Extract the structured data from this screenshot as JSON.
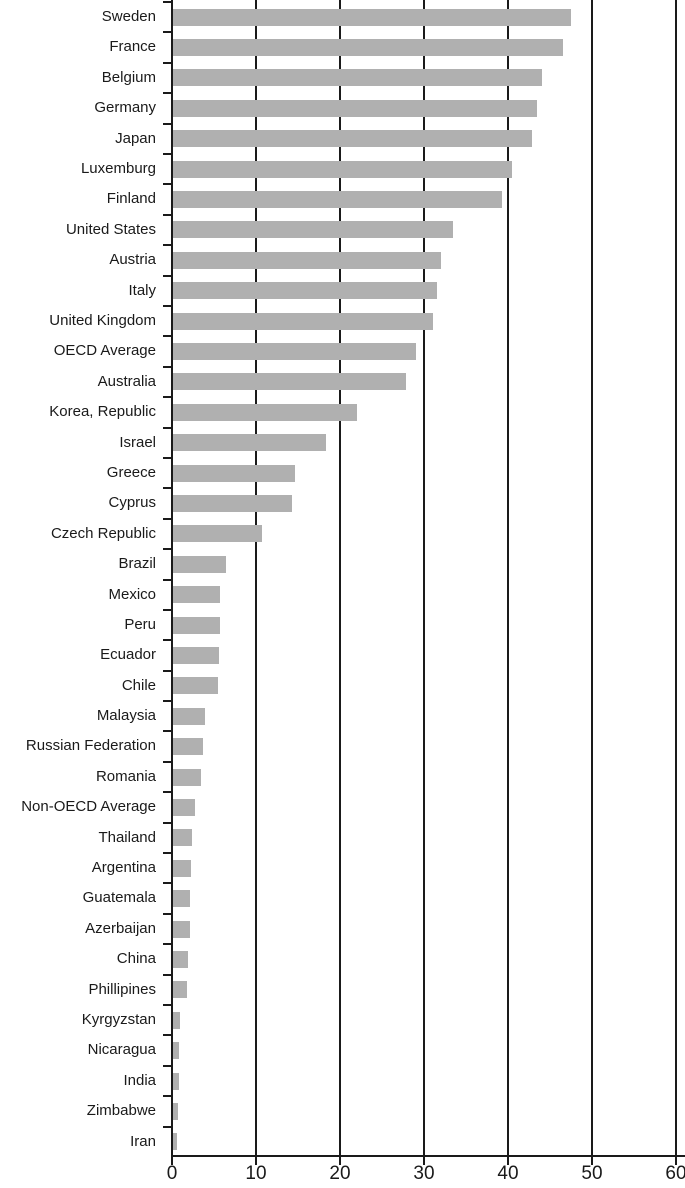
{
  "chart_data": {
    "type": "bar",
    "orientation": "horizontal",
    "title": "",
    "xlabel": "",
    "ylabel": "",
    "categories": [
      "Sweden",
      "France",
      "Belgium",
      "Germany",
      "Japan",
      "Luxemburg",
      "Finland",
      "United States",
      "Austria",
      "Italy",
      "United Kingdom",
      "OECD Average",
      "Australia",
      "Korea, Republic",
      "Israel",
      "Greece",
      "Cyprus",
      "Czech Republic",
      "Brazil",
      "Mexico",
      "Peru",
      "Ecuador",
      "Chile",
      "Malaysia",
      "Russian Federation",
      "Romania",
      "Non-OECD Average",
      "Thailand",
      "Argentina",
      "Guatemala",
      "Azerbaijan",
      "China",
      "Phillipines",
      "Kyrgyzstan",
      "Nicaragua",
      "India",
      "Zimbabwe",
      "Iran"
    ],
    "values": [
      47.5,
      46.5,
      44.0,
      43.5,
      42.8,
      40.5,
      39.3,
      33.4,
      32.0,
      31.6,
      31.1,
      29.0,
      27.9,
      22.0,
      18.3,
      14.6,
      14.3,
      10.7,
      6.4,
      5.7,
      5.7,
      5.6,
      5.5,
      3.9,
      3.7,
      3.4,
      2.7,
      2.4,
      2.3,
      2.2,
      2.1,
      1.9,
      1.8,
      0.9,
      0.85,
      0.8,
      0.75,
      0.6
    ],
    "xlim": [
      0,
      60
    ],
    "x_ticks": [
      0,
      10,
      20,
      30,
      40,
      50,
      60
    ],
    "grid": "vertical-at-x-ticks",
    "legend": "none",
    "bar_color": "#b0b0b0",
    "axis_color": "#1a1a1a",
    "text_color": "#1a1a1a"
  }
}
